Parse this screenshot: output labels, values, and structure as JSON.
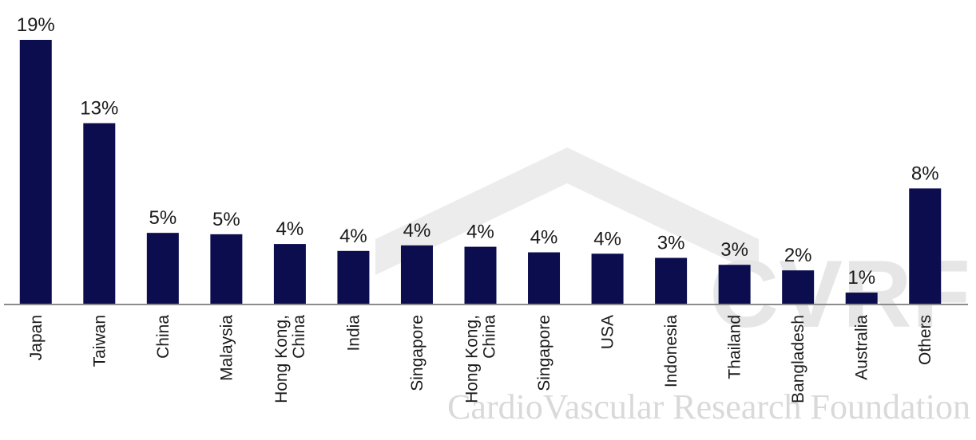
{
  "watermark": {
    "logo_letters": "CVRF",
    "tagline": "CardioVascular Research Foundation"
  },
  "chart_data": {
    "type": "bar",
    "title": "",
    "xlabel": "",
    "ylabel": "",
    "ylim": [
      0,
      19
    ],
    "grid": false,
    "legend": "none",
    "bar_color": "#0b0d4f",
    "categories": [
      [
        "Japan"
      ],
      [
        "Taiwan"
      ],
      [
        "China"
      ],
      [
        "Malaysia"
      ],
      [
        "Hong Kong,",
        "China"
      ],
      [
        "India"
      ],
      [
        "Singapore"
      ],
      [
        "Hong Kong,",
        "China"
      ],
      [
        "Singapore"
      ],
      [
        "USA"
      ],
      [
        "Indonesia"
      ],
      [
        "Thailand"
      ],
      [
        "Bangladesh"
      ],
      [
        "Australia"
      ],
      [
        "Others"
      ]
    ],
    "values": [
      19,
      13,
      5.1,
      5,
      4.3,
      3.8,
      4.2,
      4.1,
      3.7,
      3.6,
      3.3,
      2.8,
      2.4,
      0.8,
      8.3
    ],
    "data_labels": [
      "19%",
      "13%",
      "5%",
      "5%",
      "4%",
      "4%",
      "4%",
      "4%",
      "4%",
      "4%",
      "3%",
      "3%",
      "2%",
      "1%",
      "8%"
    ]
  }
}
